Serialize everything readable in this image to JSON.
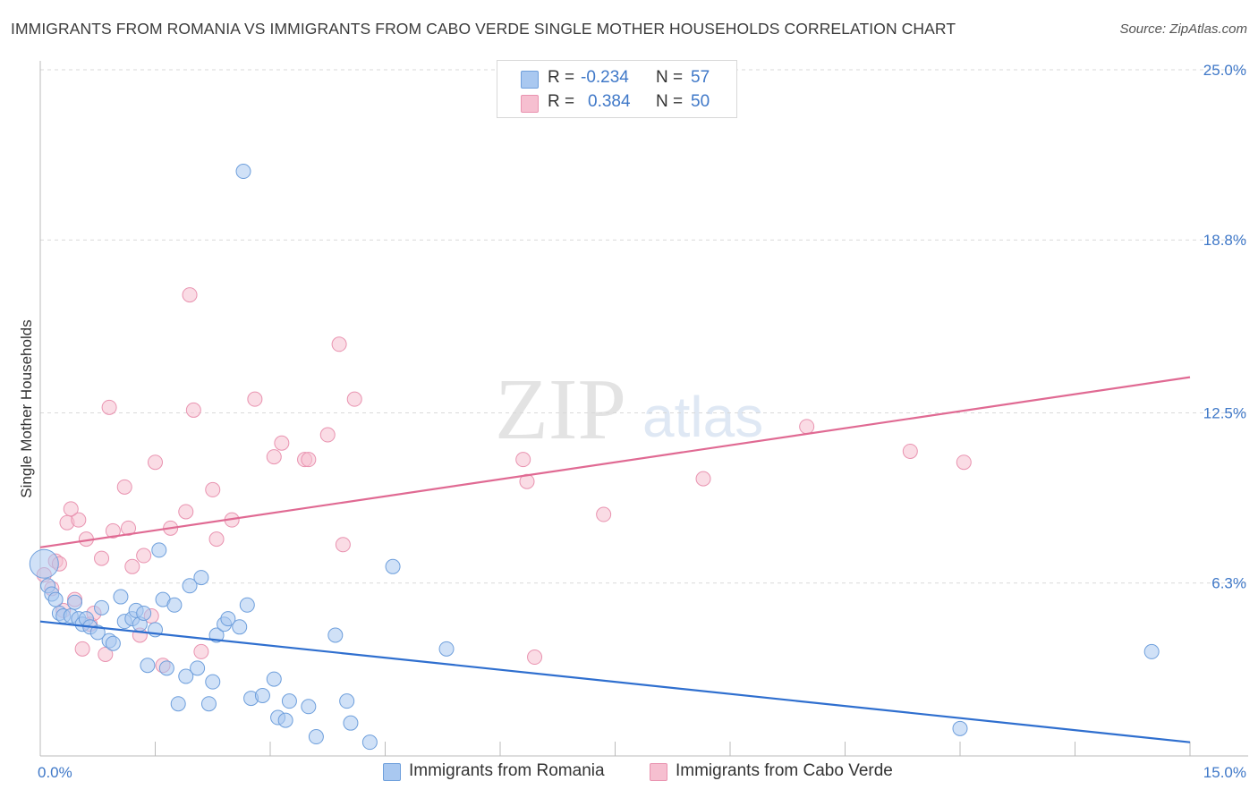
{
  "title": "IMMIGRANTS FROM ROMANIA VS IMMIGRANTS FROM CABO VERDE SINGLE MOTHER HOUSEHOLDS CORRELATION CHART",
  "source": "Source: ZipAtlas.com",
  "watermark": {
    "zip": "ZIP",
    "atlas": "atlas"
  },
  "legend": {
    "romania": {
      "r_label": "R =",
      "r_value": "-0.234",
      "n_label": "N =",
      "n_value": "57"
    },
    "cabo": {
      "r_label": "R =",
      "r_value": "0.384",
      "n_label": "N =",
      "n_value": "50"
    }
  },
  "colors": {
    "romania_fill": "#a9c8f0",
    "romania_stroke": "#6e9fdc",
    "romania_line": "#2f6fcf",
    "cabo_fill": "#f6bfd0",
    "cabo_stroke": "#e993b0",
    "cabo_line": "#e06a93",
    "tick": "#3f78c8",
    "grid": "#d9d9d9"
  },
  "chart_data": {
    "type": "scatter",
    "title": "IMMIGRANTS FROM ROMANIA VS IMMIGRANTS FROM CABO VERDE SINGLE MOTHER HOUSEHOLDS CORRELATION CHART",
    "xlabel": "",
    "ylabel": "Single Mother Households",
    "xlim": [
      0,
      15
    ],
    "ylim": [
      0,
      25.0
    ],
    "x_tick_labels": [
      "0.0%",
      "15.0%"
    ],
    "y_ticks": [
      6.3,
      12.5,
      18.8,
      25.0
    ],
    "y_tick_labels": [
      "6.3%",
      "12.5%",
      "18.8%",
      "25.0%"
    ],
    "grid": "horizontal dashed",
    "legend_position": "top-center",
    "series": [
      {
        "name": "Immigrants from Romania",
        "trend": {
          "x": [
            0,
            15
          ],
          "y": [
            4.9,
            0.5
          ]
        },
        "points": [
          {
            "x": 0.05,
            "y": 7.0,
            "big": true
          },
          {
            "x": 0.1,
            "y": 6.2
          },
          {
            "x": 0.15,
            "y": 5.9
          },
          {
            "x": 0.2,
            "y": 5.7
          },
          {
            "x": 0.25,
            "y": 5.2
          },
          {
            "x": 0.3,
            "y": 5.1
          },
          {
            "x": 0.4,
            "y": 5.1
          },
          {
            "x": 0.45,
            "y": 5.6
          },
          {
            "x": 0.5,
            "y": 5.0
          },
          {
            "x": 0.55,
            "y": 4.8
          },
          {
            "x": 0.6,
            "y": 5.0
          },
          {
            "x": 0.65,
            "y": 4.7
          },
          {
            "x": 0.75,
            "y": 4.5
          },
          {
            "x": 0.8,
            "y": 5.4
          },
          {
            "x": 0.9,
            "y": 4.2
          },
          {
            "x": 0.95,
            "y": 4.1
          },
          {
            "x": 1.05,
            "y": 5.8
          },
          {
            "x": 1.1,
            "y": 4.9
          },
          {
            "x": 1.2,
            "y": 5.0
          },
          {
            "x": 1.25,
            "y": 5.3
          },
          {
            "x": 1.3,
            "y": 4.8
          },
          {
            "x": 1.35,
            "y": 5.2
          },
          {
            "x": 1.4,
            "y": 3.3
          },
          {
            "x": 1.5,
            "y": 4.6
          },
          {
            "x": 1.55,
            "y": 7.5
          },
          {
            "x": 1.6,
            "y": 5.7
          },
          {
            "x": 1.65,
            "y": 3.2
          },
          {
            "x": 1.75,
            "y": 5.5
          },
          {
            "x": 1.8,
            "y": 1.9
          },
          {
            "x": 1.9,
            "y": 2.9
          },
          {
            "x": 1.95,
            "y": 6.2
          },
          {
            "x": 2.05,
            "y": 3.2
          },
          {
            "x": 2.1,
            "y": 6.5
          },
          {
            "x": 2.2,
            "y": 1.9
          },
          {
            "x": 2.25,
            "y": 2.7
          },
          {
            "x": 2.3,
            "y": 4.4
          },
          {
            "x": 2.4,
            "y": 4.8
          },
          {
            "x": 2.45,
            "y": 5.0
          },
          {
            "x": 2.6,
            "y": 4.7
          },
          {
            "x": 2.7,
            "y": 5.5
          },
          {
            "x": 2.75,
            "y": 2.1
          },
          {
            "x": 2.65,
            "y": 21.3
          },
          {
            "x": 2.9,
            "y": 2.2
          },
          {
            "x": 3.05,
            "y": 2.8
          },
          {
            "x": 3.1,
            "y": 1.4
          },
          {
            "x": 3.25,
            "y": 2.0
          },
          {
            "x": 3.2,
            "y": 1.3
          },
          {
            "x": 3.5,
            "y": 1.8
          },
          {
            "x": 3.6,
            "y": 0.7
          },
          {
            "x": 3.85,
            "y": 4.4
          },
          {
            "x": 4.0,
            "y": 2.0
          },
          {
            "x": 4.05,
            "y": 1.2
          },
          {
            "x": 4.3,
            "y": 0.5
          },
          {
            "x": 4.6,
            "y": 6.9
          },
          {
            "x": 5.3,
            "y": 3.9
          },
          {
            "x": 12.0,
            "y": 1.0
          },
          {
            "x": 14.5,
            "y": 3.8
          }
        ]
      },
      {
        "name": "Immigrants from Cabo Verde",
        "trend": {
          "x": [
            0,
            15
          ],
          "y": [
            7.6,
            13.8
          ]
        },
        "points": [
          {
            "x": 0.05,
            "y": 6.6
          },
          {
            "x": 0.15,
            "y": 6.1
          },
          {
            "x": 0.2,
            "y": 7.1
          },
          {
            "x": 0.25,
            "y": 7.0
          },
          {
            "x": 0.35,
            "y": 8.5
          },
          {
            "x": 0.45,
            "y": 5.7
          },
          {
            "x": 0.5,
            "y": 8.6
          },
          {
            "x": 0.55,
            "y": 3.9
          },
          {
            "x": 0.6,
            "y": 7.9
          },
          {
            "x": 0.65,
            "y": 4.8
          },
          {
            "x": 0.7,
            "y": 5.2
          },
          {
            "x": 0.8,
            "y": 7.2
          },
          {
            "x": 0.85,
            "y": 3.7
          },
          {
            "x": 0.9,
            "y": 12.7
          },
          {
            "x": 0.95,
            "y": 8.2
          },
          {
            "x": 1.1,
            "y": 9.8
          },
          {
            "x": 1.15,
            "y": 8.3
          },
          {
            "x": 1.2,
            "y": 6.9
          },
          {
            "x": 1.3,
            "y": 4.4
          },
          {
            "x": 1.35,
            "y": 7.3
          },
          {
            "x": 1.45,
            "y": 5.1
          },
          {
            "x": 1.5,
            "y": 10.7
          },
          {
            "x": 1.6,
            "y": 3.3
          },
          {
            "x": 1.7,
            "y": 8.3
          },
          {
            "x": 1.9,
            "y": 8.9
          },
          {
            "x": 1.95,
            "y": 16.8
          },
          {
            "x": 2.0,
            "y": 12.6
          },
          {
            "x": 2.1,
            "y": 3.8
          },
          {
            "x": 2.25,
            "y": 9.7
          },
          {
            "x": 2.3,
            "y": 7.9
          },
          {
            "x": 2.5,
            "y": 8.6
          },
          {
            "x": 2.8,
            "y": 13.0
          },
          {
            "x": 3.05,
            "y": 10.9
          },
          {
            "x": 3.15,
            "y": 11.4
          },
          {
            "x": 3.45,
            "y": 10.8
          },
          {
            "x": 3.5,
            "y": 10.8
          },
          {
            "x": 3.75,
            "y": 11.7
          },
          {
            "x": 3.9,
            "y": 15.0
          },
          {
            "x": 3.95,
            "y": 7.7
          },
          {
            "x": 4.1,
            "y": 13.0
          },
          {
            "x": 6.3,
            "y": 10.8
          },
          {
            "x": 6.35,
            "y": 10.0
          },
          {
            "x": 6.45,
            "y": 3.6
          },
          {
            "x": 7.35,
            "y": 8.8
          },
          {
            "x": 8.65,
            "y": 10.1
          },
          {
            "x": 10.0,
            "y": 12.0
          },
          {
            "x": 11.35,
            "y": 11.1
          },
          {
            "x": 12.05,
            "y": 10.7
          },
          {
            "x": 0.3,
            "y": 5.3
          },
          {
            "x": 0.4,
            "y": 9.0
          }
        ]
      }
    ]
  },
  "bottom_legend": {
    "romania": "Immigrants from Romania",
    "cabo": "Immigrants from Cabo Verde"
  }
}
